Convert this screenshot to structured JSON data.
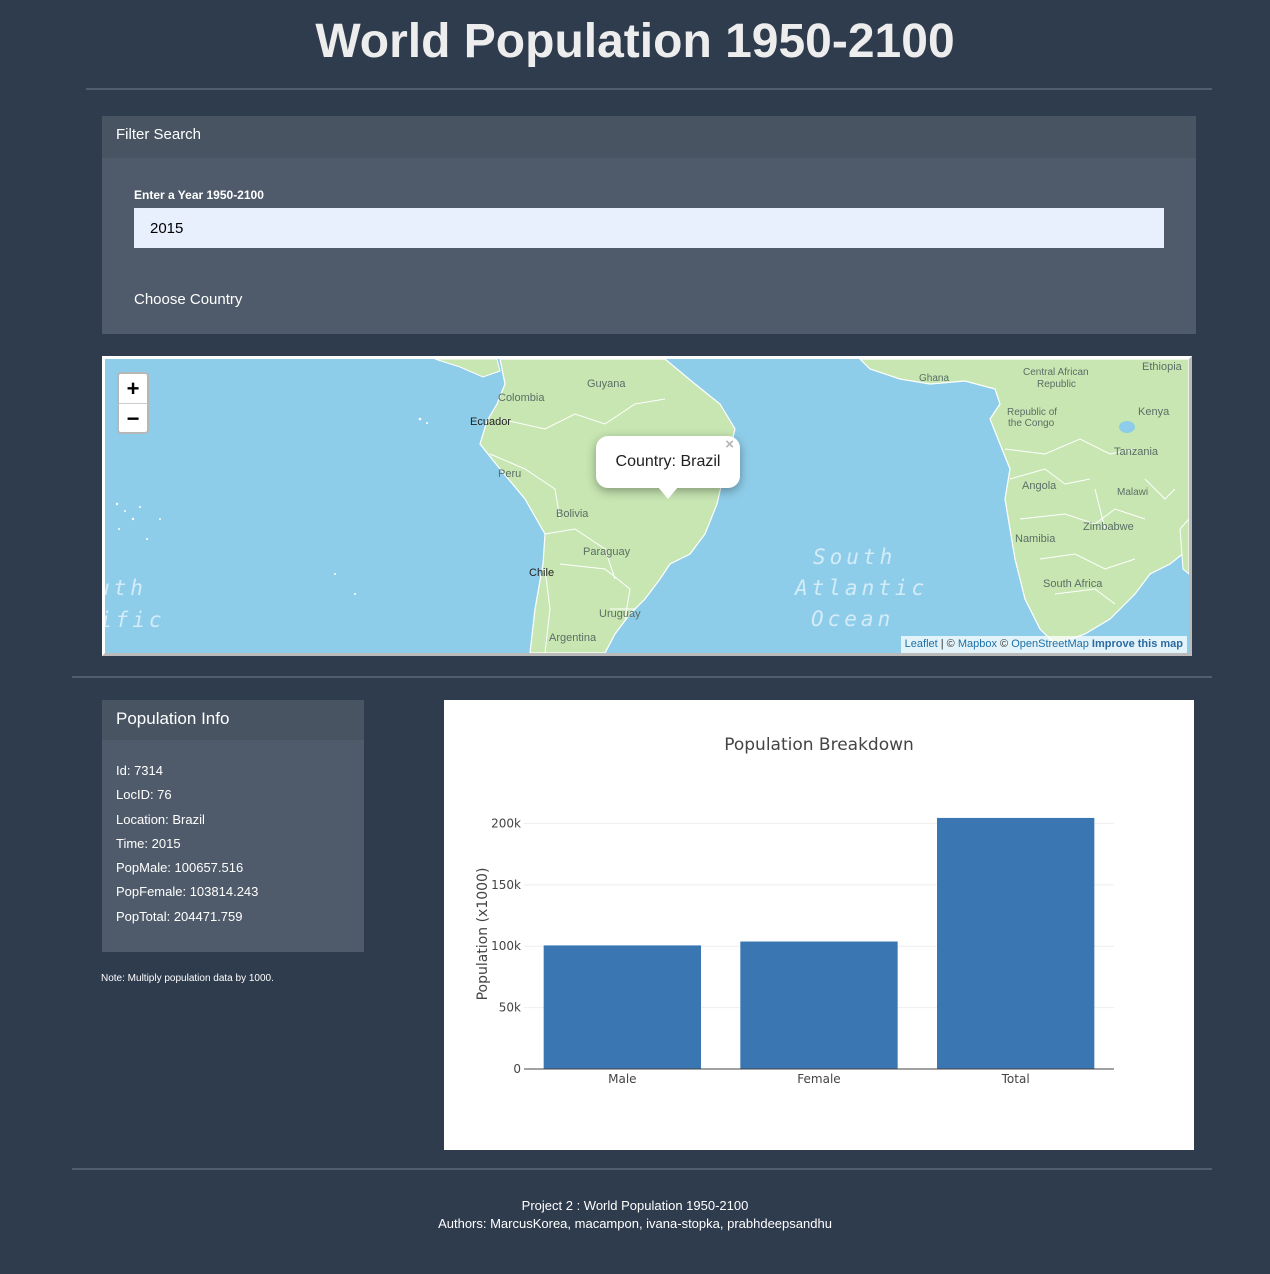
{
  "page": {
    "title": "World Population 1950-2100"
  },
  "filter": {
    "header": "Filter Search",
    "year_label": "Enter a Year 1950-2100",
    "year_value": "2015",
    "country_label": "Choose Country"
  },
  "map": {
    "zoom_in": "+",
    "zoom_out": "−",
    "popup_text": "Country: Brazil",
    "popup_close": "×",
    "attribution": {
      "leaflet": "Leaflet",
      "sep1": " | © ",
      "mapbox": "Mapbox",
      "sep2": " © ",
      "osm": "OpenStreetMap",
      "improve": "Improve this map"
    },
    "labels": {
      "guyana": "Guyana",
      "colombia": "Colombia",
      "ecuador": "Ecuador",
      "peru": "Peru",
      "bolivia": "Bolivia",
      "paraguay": "Paraguay",
      "chile": "Chile",
      "uruguay": "Uruguay",
      "argentina": "Argentina",
      "ghana": "Ghana",
      "car": "Central African Republic",
      "car_line1": "Central African",
      "car_line2": "Republic",
      "ethiopia": "Ethiopia",
      "congo_line1": "Republic of",
      "congo_line2": "the Congo",
      "kenya": "Kenya",
      "tanzania": "Tanzania",
      "angola": "Angola",
      "malawi": "Malawi",
      "zimbabwe": "Zimbabwe",
      "namibia": "Namibia",
      "south_africa": "South Africa",
      "ocean1": "South",
      "ocean2": "Atlantic",
      "ocean3": "Ocean",
      "ocean_left1": "uth",
      "ocean_left2": "ific"
    }
  },
  "population_info": {
    "header": "Population Info",
    "lines": [
      "Id: 7314",
      "LocID: 76",
      "Location: Brazil",
      "Time: 2015",
      "PopMale: 100657.516",
      "PopFemale: 103814.243",
      "PopTotal: 204471.759"
    ],
    "note": "Note: Multiply population data by 1000."
  },
  "chart_data": {
    "type": "bar",
    "title": "Population Breakdown",
    "xlabel": "",
    "ylabel": "Population (x1000)",
    "categories": [
      "Male",
      "Female",
      "Total"
    ],
    "values": [
      100657.516,
      103814.243,
      204471.759
    ],
    "ylim": [
      0,
      215000
    ],
    "yticks": [
      0,
      50000,
      100000,
      150000,
      200000
    ],
    "ytick_labels": [
      "0",
      "50k",
      "100k",
      "150k",
      "200k"
    ],
    "grid": true,
    "bar_color": "#3a76b1"
  },
  "footer": {
    "line1": "Project 2 : World Population 1950-2100",
    "line2": "Authors: MarcusKorea, macampon, ivana-stopka, prabhdeepsandhu"
  }
}
